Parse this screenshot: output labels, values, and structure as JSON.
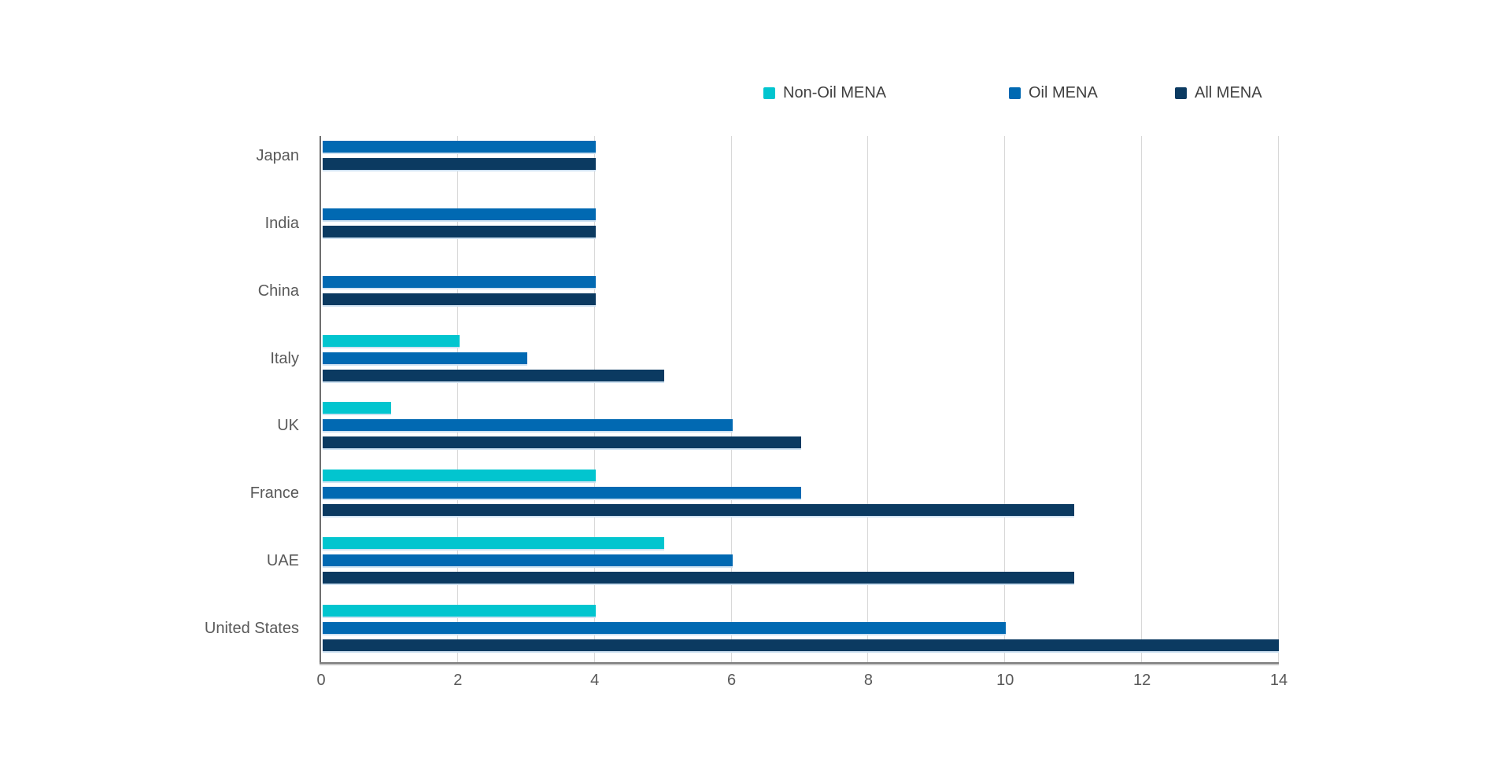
{
  "chart_data": {
    "type": "bar",
    "orientation": "horizontal",
    "title": "",
    "xlabel": "",
    "ylabel": "",
    "categories": [
      "Japan",
      "India",
      "China",
      "Italy",
      "UK",
      "France",
      "UAE",
      "United States"
    ],
    "series": [
      {
        "name": "Non-Oil MENA",
        "color": "#02C5CF",
        "values": [
          0,
          0,
          0,
          2,
          1,
          4,
          5,
          4
        ]
      },
      {
        "name": "Oil MENA",
        "color": "#0169B2",
        "values": [
          4,
          4,
          4,
          3,
          6,
          7,
          6,
          10
        ]
      },
      {
        "name": "All MENA",
        "color": "#0B3A61",
        "values": [
          4,
          4,
          4,
          5,
          7,
          11,
          11,
          14
        ]
      }
    ],
    "xlim": [
      0,
      14
    ],
    "xticks": [
      0,
      2,
      4,
      6,
      8,
      10,
      12,
      14
    ],
    "grid": true,
    "legend_position": "top",
    "zero_value_bars_hidden": true
  },
  "colors": {
    "background": "#FFFFFF",
    "gridline": "#D8D8D8",
    "y_axis_line": "#6E6E6E",
    "x_axis_line": "#7D7D7D",
    "tick_text": "#595959",
    "category_text": "#595959",
    "legend_text": "#404040",
    "bar_bottom_edge": "#CFE2F2"
  }
}
